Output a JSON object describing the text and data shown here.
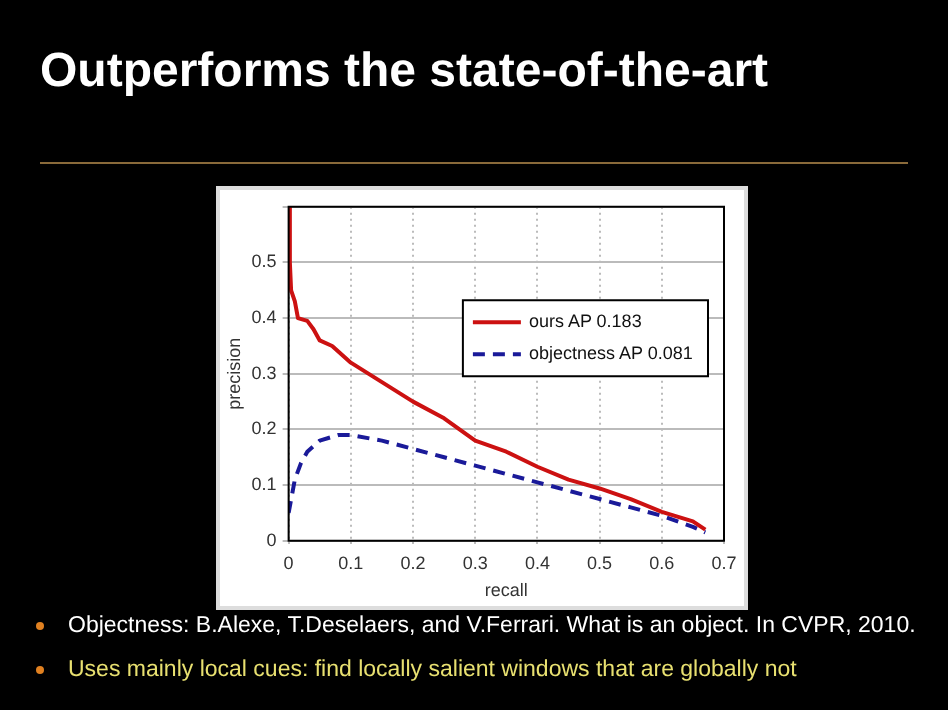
{
  "chart_data": {
    "type": "line",
    "title": "Outperforms the state-of-the-art",
    "xlabel": "recall",
    "ylabel": "precision",
    "xlim": [
      0,
      0.7
    ],
    "xticks": [
      0,
      0.1,
      0.2,
      0.3,
      0.4,
      0.5,
      0.6,
      0.7
    ],
    "ylim": [
      0,
      0.6
    ],
    "yticks": [
      0,
      0.1,
      0.2,
      0.3,
      0.4,
      0.5,
      {
        "value": 0.6,
        "label": null
      }
    ],
    "grid": true,
    "legend": "top right",
    "marker": "none",
    "series": [
      {
        "name": "ours AP 0.183",
        "color": "#cc1111",
        "line_style": "solid",
        "x": [
          0,
          0.002,
          0.004,
          0.01,
          0.015,
          0.03,
          0.04,
          0.05,
          0.07,
          0.1,
          0.15,
          0.2,
          0.25,
          0.3,
          0.35,
          0.4,
          0.45,
          0.5,
          0.55,
          0.6,
          0.65,
          0.67
        ],
        "values": [
          0.6,
          0.5,
          0.45,
          0.43,
          0.4,
          0.395,
          0.38,
          0.36,
          0.35,
          0.32,
          0.285,
          0.25,
          0.22,
          0.18,
          0.16,
          0.133,
          0.11,
          0.094,
          0.075,
          0.052,
          0.035,
          0.02
        ]
      },
      {
        "name": "objectness AP 0.081",
        "color": "#1a1a99",
        "line_style": "dashed",
        "x": [
          0,
          0.005,
          0.01,
          0.02,
          0.03,
          0.05,
          0.08,
          0.1,
          0.15,
          0.2,
          0.25,
          0.3,
          0.35,
          0.4,
          0.45,
          0.5,
          0.55,
          0.6,
          0.65,
          0.67
        ],
        "values": [
          0.05,
          0.08,
          0.11,
          0.14,
          0.16,
          0.18,
          0.19,
          0.19,
          0.18,
          0.165,
          0.15,
          0.135,
          0.12,
          0.105,
          0.09,
          0.075,
          0.06,
          0.045,
          0.025,
          0.015
        ]
      }
    ],
    "annotations": [
      "Objectness: B.Alexe, T.Deselaers, and V.Ferrari. What is an object. In CVPR, 2010.",
      "Uses mainly local cues: find locally salient windows that are globally not"
    ]
  }
}
